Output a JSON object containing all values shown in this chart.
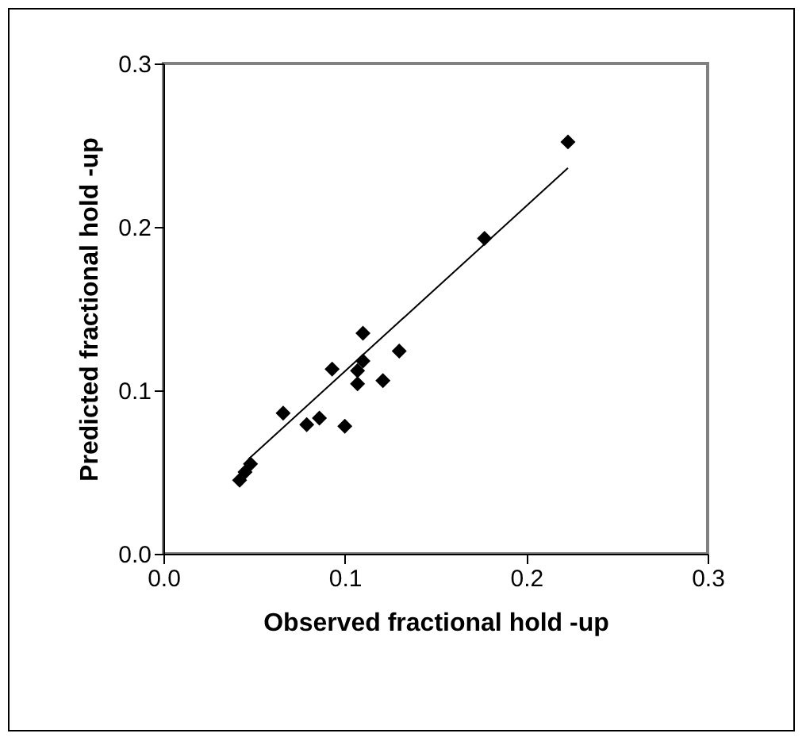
{
  "chart_data": {
    "type": "scatter",
    "xlabel": "Observed fractional hold -up",
    "ylabel": "Predicted fractional hold -up",
    "xlim": [
      0,
      0.3
    ],
    "ylim": [
      0,
      0.3
    ],
    "xticks": [
      {
        "value": 0,
        "label": "0.0"
      },
      0.1,
      0.2,
      0.3
    ],
    "yticks": [
      {
        "value": 0,
        "label": "0.0"
      },
      0.1,
      0.2,
      0.3
    ],
    "grid": false,
    "marker": "diamond",
    "series": [
      {
        "color": "#000000",
        "x": [
          0.223,
          0.177,
          0.13,
          0.121,
          0.11,
          0.11,
          0.107,
          0.107,
          0.1,
          0.093,
          0.086,
          0.079,
          0.066,
          0.048,
          0.045,
          0.042
        ],
        "values": [
          0.252,
          0.193,
          0.124,
          0.106,
          0.135,
          0.118,
          0.112,
          0.104,
          0.078,
          0.113,
          0.083,
          0.079,
          0.086,
          0.055,
          0.05,
          0.045
        ]
      },
      {
        "type": "line",
        "color": "#000000",
        "line_style": "solid",
        "marker": "none",
        "x": [
          0.047,
          0.223
        ],
        "values": [
          0.058,
          0.236
        ]
      }
    ]
  }
}
